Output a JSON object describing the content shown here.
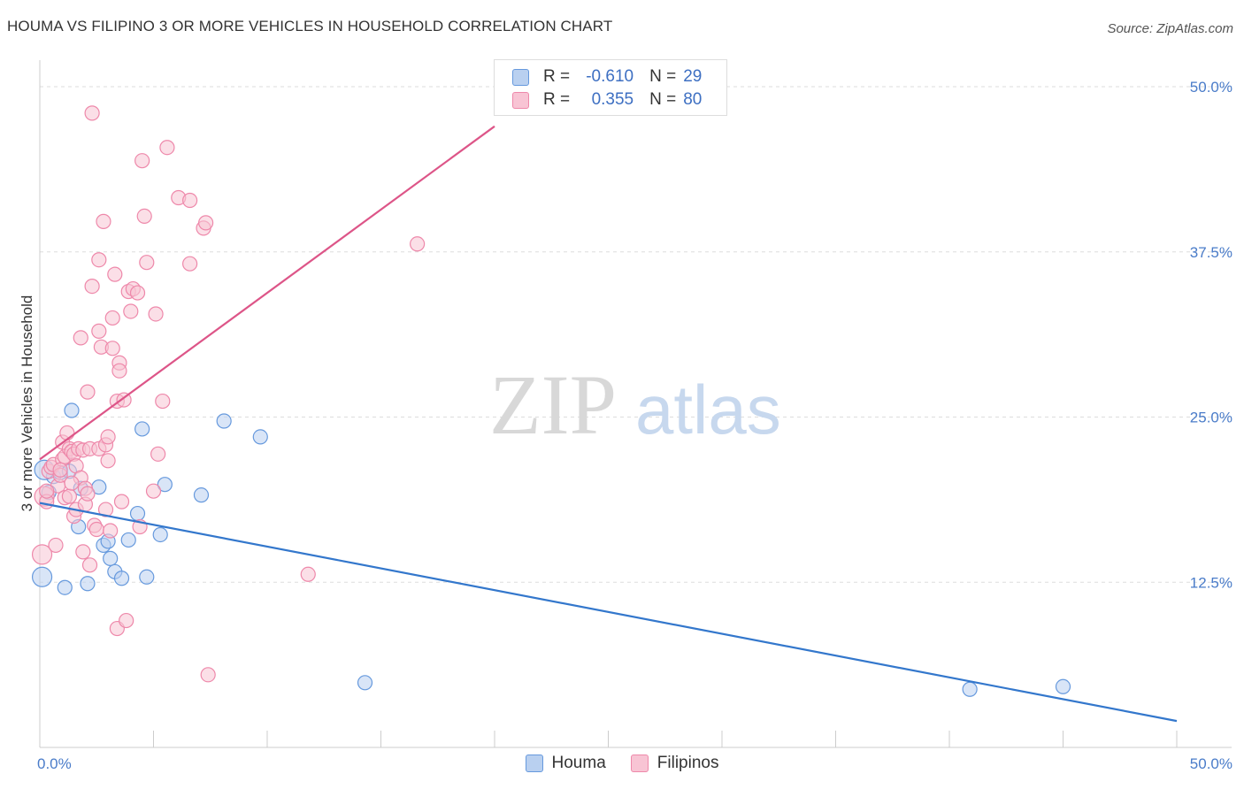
{
  "header": {
    "title": "HOUMA VS FILIPINO 3 OR MORE VEHICLES IN HOUSEHOLD CORRELATION CHART",
    "source": "Source: ZipAtlas.com"
  },
  "watermark": {
    "zip": "ZIP",
    "atlas": "atlas"
  },
  "legend": {
    "r_label": "R =",
    "n_label": "N =",
    "rows": [
      {
        "name": "Houma",
        "r": "-0.610",
        "n": "29",
        "color": "#6699dd"
      },
      {
        "name": "Filipinos",
        "r": "0.355",
        "n": "80",
        "color": "#ee88aa"
      }
    ]
  },
  "chart_data": {
    "type": "scatter",
    "title": "HOUMA VS FILIPINO 3 OR MORE VEHICLES IN HOUSEHOLD CORRELATION CHART",
    "xlabel": "",
    "ylabel": "3 or more Vehicles in Household",
    "xlim": [
      0,
      50
    ],
    "ylim": [
      0,
      50
    ],
    "x_tick_labels": [
      "0.0%",
      "50.0%"
    ],
    "y_ticks": [
      12.5,
      25.0,
      37.5,
      50.0
    ],
    "y_tick_labels": [
      "12.5%",
      "25.0%",
      "37.5%",
      "50.0%"
    ],
    "series": [
      {
        "name": "Houma",
        "color": "#6699dd",
        "fill": "#b9d0f0",
        "trend": {
          "x1": 0,
          "y1": 18.5,
          "x2": 50,
          "y2": 2.0,
          "color": "#3377cc"
        },
        "points": [
          [
            0.1,
            12.9
          ],
          [
            0.4,
            19.3
          ],
          [
            0.6,
            20.5
          ],
          [
            0.9,
            20.8
          ],
          [
            1.1,
            12.1
          ],
          [
            1.3,
            20.9
          ],
          [
            1.4,
            25.5
          ],
          [
            1.7,
            16.7
          ],
          [
            1.8,
            19.6
          ],
          [
            2.1,
            12.4
          ],
          [
            2.6,
            19.7
          ],
          [
            2.8,
            15.3
          ],
          [
            3.0,
            15.6
          ],
          [
            3.1,
            14.3
          ],
          [
            3.3,
            13.3
          ],
          [
            3.6,
            12.8
          ],
          [
            3.9,
            15.7
          ],
          [
            4.3,
            17.7
          ],
          [
            4.5,
            24.1
          ],
          [
            4.7,
            12.9
          ],
          [
            5.3,
            16.1
          ],
          [
            5.5,
            19.9
          ],
          [
            7.1,
            19.1
          ],
          [
            8.1,
            24.7
          ],
          [
            9.7,
            23.5
          ],
          [
            14.3,
            4.9
          ],
          [
            40.9,
            4.4
          ],
          [
            45.0,
            4.6
          ],
          [
            0.2,
            21.0
          ]
        ]
      },
      {
        "name": "Filipinos",
        "color": "#ee88aa",
        "fill": "#f8c4d4",
        "trend": {
          "x1": 0,
          "y1": 21.8,
          "x2": 20.0,
          "y2": 47.0,
          "color": "#dd5588"
        },
        "points": [
          [
            0.1,
            14.6
          ],
          [
            0.2,
            19.0
          ],
          [
            0.3,
            18.6
          ],
          [
            0.4,
            20.9
          ],
          [
            0.5,
            21.2
          ],
          [
            0.6,
            21.4
          ],
          [
            0.7,
            15.3
          ],
          [
            0.8,
            19.8
          ],
          [
            0.9,
            20.6
          ],
          [
            1.0,
            23.1
          ],
          [
            1.0,
            21.8
          ],
          [
            1.1,
            22.0
          ],
          [
            1.1,
            18.9
          ],
          [
            1.2,
            23.8
          ],
          [
            1.3,
            22.6
          ],
          [
            1.3,
            19.0
          ],
          [
            1.4,
            22.4
          ],
          [
            1.5,
            17.5
          ],
          [
            1.5,
            22.2
          ],
          [
            1.6,
            21.3
          ],
          [
            1.6,
            18.0
          ],
          [
            1.7,
            22.6
          ],
          [
            1.8,
            20.4
          ],
          [
            1.8,
            31.0
          ],
          [
            1.9,
            14.8
          ],
          [
            1.9,
            22.5
          ],
          [
            2.0,
            19.6
          ],
          [
            2.0,
            18.4
          ],
          [
            2.1,
            26.9
          ],
          [
            2.2,
            13.8
          ],
          [
            2.2,
            22.6
          ],
          [
            2.3,
            48.0
          ],
          [
            2.3,
            34.9
          ],
          [
            2.4,
            16.8
          ],
          [
            2.5,
            16.5
          ],
          [
            2.6,
            31.5
          ],
          [
            2.6,
            22.6
          ],
          [
            2.6,
            36.9
          ],
          [
            2.7,
            30.3
          ],
          [
            2.8,
            39.8
          ],
          [
            2.9,
            18.0
          ],
          [
            2.9,
            22.9
          ],
          [
            3.0,
            23.5
          ],
          [
            3.0,
            21.7
          ],
          [
            3.1,
            16.4
          ],
          [
            3.2,
            30.2
          ],
          [
            3.2,
            32.5
          ],
          [
            3.3,
            35.8
          ],
          [
            3.4,
            26.2
          ],
          [
            3.4,
            9.0
          ],
          [
            3.5,
            29.1
          ],
          [
            3.5,
            28.5
          ],
          [
            3.6,
            18.6
          ],
          [
            3.7,
            26.3
          ],
          [
            3.8,
            9.6
          ],
          [
            3.9,
            34.5
          ],
          [
            4.0,
            33.0
          ],
          [
            4.1,
            34.7
          ],
          [
            4.3,
            34.4
          ],
          [
            4.4,
            16.7
          ],
          [
            4.5,
            44.4
          ],
          [
            4.6,
            40.2
          ],
          [
            4.7,
            36.7
          ],
          [
            5.0,
            19.4
          ],
          [
            5.1,
            32.8
          ],
          [
            5.2,
            22.2
          ],
          [
            5.4,
            26.2
          ],
          [
            5.6,
            45.4
          ],
          [
            6.1,
            41.6
          ],
          [
            6.6,
            41.4
          ],
          [
            6.6,
            36.6
          ],
          [
            7.2,
            39.3
          ],
          [
            7.3,
            39.7
          ],
          [
            7.4,
            5.5
          ],
          [
            11.8,
            13.1
          ],
          [
            16.6,
            38.1
          ],
          [
            0.3,
            19.4
          ],
          [
            0.9,
            21.0
          ],
          [
            1.4,
            20.0
          ],
          [
            2.1,
            19.2
          ]
        ]
      }
    ]
  }
}
